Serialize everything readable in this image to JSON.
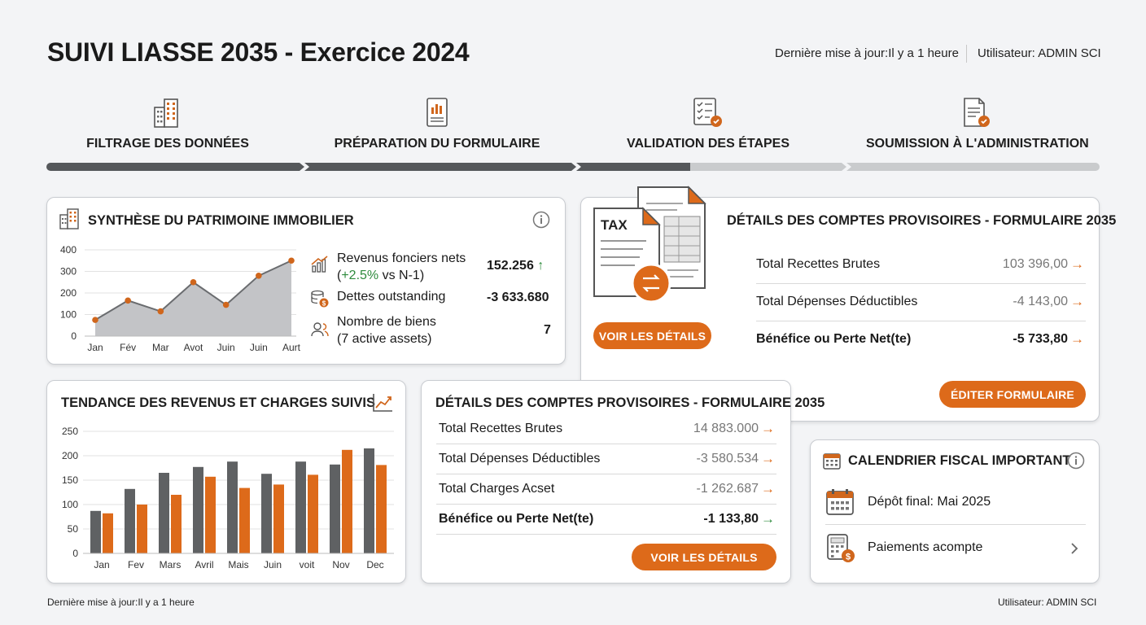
{
  "header": {
    "title": "SUIVI LIASSE 2035 - Exercice 2024",
    "last_update": "Dernière mise à jour:Il y a 1 heure",
    "user": "Utilisateur: ADMIN SCI"
  },
  "steps": [
    {
      "label": "FILTRAGE DES DONNÉES",
      "icon": "building-icon"
    },
    {
      "label": "PRÉPARATION DU FORMULAIRE",
      "icon": "report-chart-icon"
    },
    {
      "label": "VALIDATION DES ÉTAPES",
      "icon": "checklist-icon"
    },
    {
      "label": "SOUMISSION À L'ADMINISTRATION",
      "icon": "document-check-icon"
    }
  ],
  "progress": {
    "completed_fraction": 0.6
  },
  "patrimoine": {
    "title": "SYNTHÈSE DU PATRIMOINE IMMOBILIER",
    "stats": [
      {
        "label1": "Revenus fonciers nets",
        "label2_pre": "(",
        "label2_hi": "+2.5%",
        "label2_post": " vs N-1)",
        "value": "152.256",
        "trend": "↑",
        "icon": "bar-trend-icon"
      },
      {
        "label1": "Dettes outstanding",
        "value": "-3 633.680",
        "icon": "coins-icon"
      },
      {
        "label1": "Nombre de biens",
        "label2": "(7 active assets)",
        "value": "7",
        "icon": "users-icon"
      }
    ]
  },
  "chart_data": [
    {
      "type": "area",
      "categories": [
        "Jan",
        "Fév",
        "Mar",
        "Avot",
        "Juin",
        "Juin",
        "Aurt"
      ],
      "values": [
        75,
        165,
        115,
        250,
        145,
        280,
        350
      ],
      "ylim": [
        0,
        400
      ],
      "yticks": [
        "0",
        "100",
        "200",
        "300",
        "400"
      ],
      "grid": true,
      "color": "#c3c4c7",
      "marker_color": "#d0661c"
    },
    {
      "type": "bar",
      "title": "TENDANCE DES REVENUS ET CHARGES SUIVIS",
      "categories": [
        "Jan",
        "Fev",
        "Mars",
        "Avril",
        "Mais",
        "Juin",
        "voit",
        "Nov",
        "Dec"
      ],
      "series": [
        {
          "values": [
            87,
            132,
            165,
            177,
            188,
            163,
            188,
            182,
            215
          ],
          "color": "#5f6163"
        },
        {
          "values": [
            82,
            100,
            120,
            157,
            134,
            141,
            161,
            212,
            181
          ],
          "color": "#dd6a1a"
        }
      ],
      "ylim": [
        0,
        250
      ],
      "yticks": [
        "0",
        "50",
        "100",
        "150",
        "200",
        "250"
      ],
      "grid": true
    }
  ],
  "comptes_main": {
    "title": "DÉTAILS DES COMPTES PROVISOIRES - FORMULAIRE 2035",
    "tax_label": "TAX",
    "rows": [
      {
        "label": "Total Recettes Brutes",
        "value": "103 396,00",
        "bold": false
      },
      {
        "label": "Total Dépenses Déductibles",
        "value": "-4 143,00",
        "bold": false
      },
      {
        "label": "Bénéfice ou Perte Net(te)",
        "value": "-5 733,80",
        "bold": true
      }
    ],
    "btn_details": "VOIR LES DÉTAILS",
    "btn_edit": "ÉDITER FORMULAIRE"
  },
  "comptes_second": {
    "title": "DÉTAILS DES COMPTES PROVISOIRES - FORMULAIRE 2035",
    "rows": [
      {
        "label": "Total Recettes Brutes",
        "value": "14 883.000",
        "bold": false
      },
      {
        "label": "Total Dépenses Déductibles",
        "value": "-3 580.534",
        "bold": false
      },
      {
        "label": "Total Charges Acset",
        "value": "-1 262.687",
        "bold": false
      },
      {
        "label": "Bénéfice ou Perte Net(te)",
        "value": "-1 133,80",
        "bold": true
      }
    ],
    "btn_details": "VOIR LES DÉTAILS"
  },
  "calendrier": {
    "title": "CALENDRIER FISCAL IMPORTANT",
    "items": [
      {
        "label": "Dépôt final: Mai 2025",
        "icon": "calendar-icon"
      },
      {
        "label": "Paiements acompte",
        "icon": "calculator-icon"
      }
    ]
  },
  "footer": {
    "last_update": "Dernière mise à jour:Il y a 1 heure",
    "user": "Utilisateur: ADMIN SCI"
  }
}
